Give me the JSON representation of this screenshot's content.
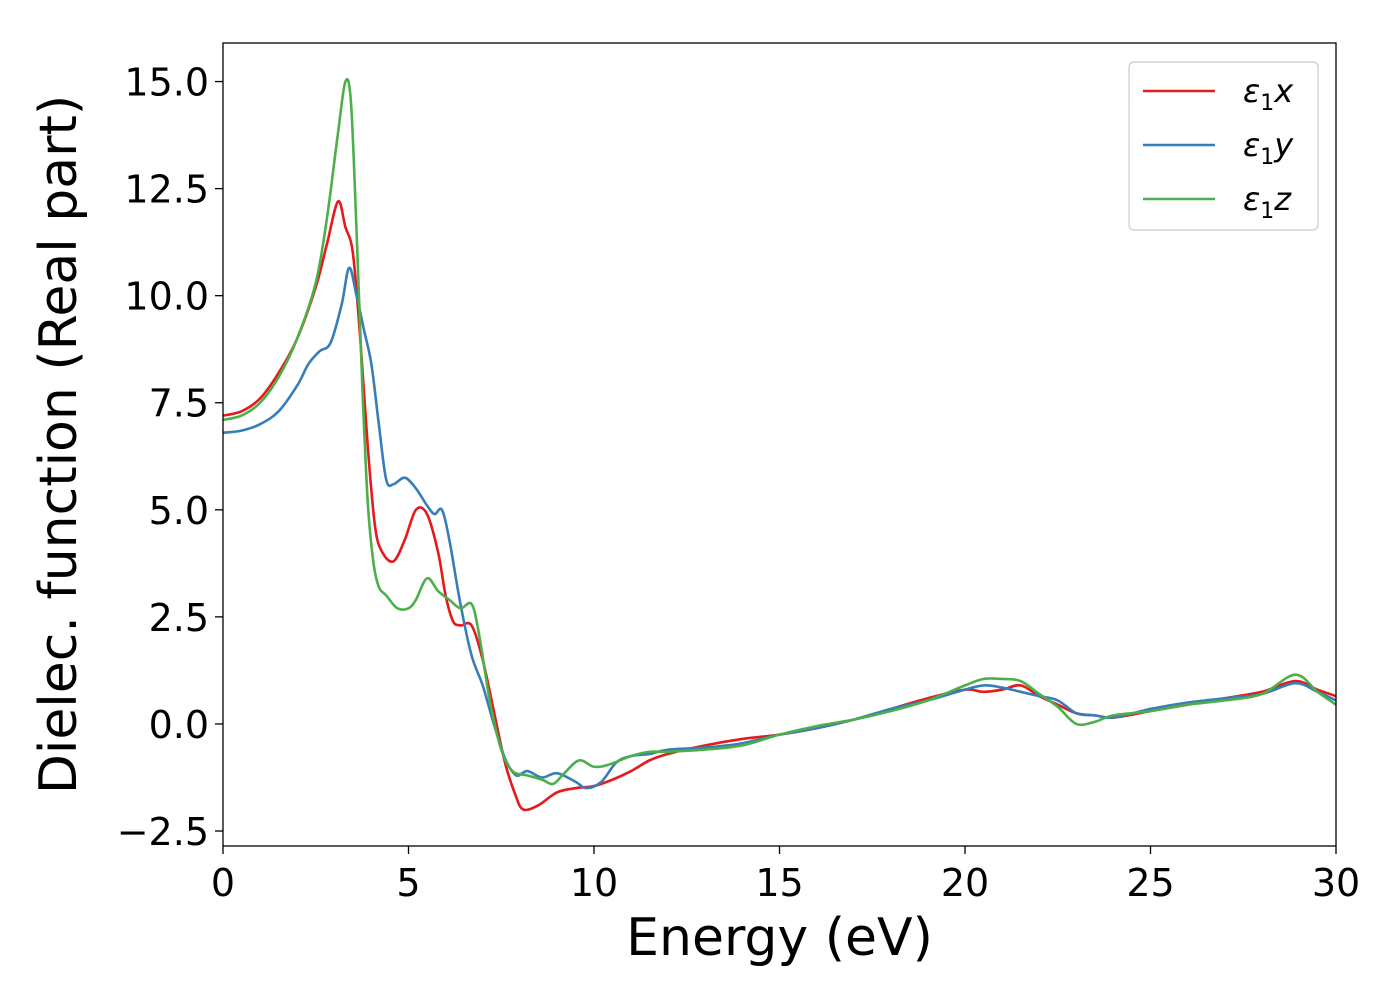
{
  "chart_data": {
    "type": "line",
    "xlabel": "Energy (eV)",
    "ylabel": "Dielec. function (Real part)",
    "xlim": [
      0,
      30
    ],
    "ylim": [
      -2.85,
      15.9
    ],
    "xticks": [
      0,
      5,
      10,
      15,
      20,
      25,
      30
    ],
    "yticks": [
      -2.5,
      0.0,
      2.5,
      5.0,
      7.5,
      10.0,
      12.5,
      15.0
    ],
    "xtick_labels": [
      "0",
      "5",
      "10",
      "15",
      "20",
      "25",
      "30"
    ],
    "ytick_labels": [
      "−2.5",
      "0.0",
      "2.5",
      "5.0",
      "7.5",
      "10.0",
      "12.5",
      "15.0"
    ],
    "grid": false,
    "legend_position": "top-right",
    "series": [
      {
        "name": "ε1x",
        "legend_base": "ε",
        "legend_sub": "1",
        "legend_var": "x",
        "color": "#e41a1c",
        "x": [
          0,
          0.5,
          1.0,
          1.5,
          2.0,
          2.5,
          2.8,
          3.1,
          3.3,
          3.5,
          3.7,
          3.9,
          4.1,
          4.3,
          4.6,
          4.9,
          5.2,
          5.5,
          5.8,
          6.0,
          6.2,
          6.4,
          6.7,
          7.0,
          7.3,
          7.6,
          7.9,
          8.1,
          8.5,
          9.0,
          9.5,
          10.0,
          10.5,
          11.0,
          11.5,
          12.0,
          13.0,
          14.0,
          15.0,
          16.0,
          17.0,
          18.0,
          19.0,
          20.0,
          20.5,
          21.0,
          21.5,
          22.0,
          22.5,
          23.0,
          23.5,
          24.0,
          25.0,
          26.0,
          27.0,
          28.0,
          28.9,
          29.5,
          30.0
        ],
        "y": [
          7.2,
          7.3,
          7.6,
          8.2,
          9.0,
          10.2,
          11.2,
          12.2,
          11.6,
          11.0,
          9.0,
          6.5,
          4.6,
          4.0,
          3.8,
          4.3,
          5.0,
          4.9,
          4.0,
          3.0,
          2.4,
          2.3,
          2.3,
          1.5,
          0.3,
          -0.9,
          -1.7,
          -2.0,
          -1.9,
          -1.6,
          -1.5,
          -1.45,
          -1.3,
          -1.1,
          -0.85,
          -0.7,
          -0.5,
          -0.35,
          -0.25,
          -0.1,
          0.1,
          0.35,
          0.6,
          0.8,
          0.75,
          0.8,
          0.9,
          0.65,
          0.45,
          0.25,
          0.2,
          0.15,
          0.3,
          0.45,
          0.6,
          0.75,
          1.0,
          0.8,
          0.65
        ]
      },
      {
        "name": "ε1y",
        "legend_base": "ε",
        "legend_sub": "1",
        "legend_var": "y",
        "color": "#377eb8",
        "x": [
          0,
          0.5,
          1.0,
          1.5,
          2.0,
          2.3,
          2.6,
          2.9,
          3.2,
          3.4,
          3.6,
          3.8,
          4.0,
          4.2,
          4.4,
          4.6,
          4.9,
          5.2,
          5.5,
          5.7,
          5.9,
          6.1,
          6.4,
          6.7,
          7.0,
          7.3,
          7.6,
          7.9,
          8.2,
          8.6,
          9.0,
          9.5,
          9.8,
          10.2,
          10.6,
          11.0,
          11.5,
          12.0,
          13.0,
          14.0,
          15.0,
          16.0,
          17.0,
          18.0,
          19.0,
          20.0,
          20.5,
          21.0,
          21.5,
          22.0,
          22.5,
          23.0,
          23.5,
          24.0,
          25.0,
          26.0,
          27.0,
          28.0,
          28.9,
          29.5,
          30.0
        ],
        "y": [
          6.8,
          6.85,
          7.0,
          7.3,
          7.9,
          8.4,
          8.7,
          8.9,
          9.8,
          10.65,
          10.0,
          9.2,
          8.4,
          7.0,
          5.7,
          5.6,
          5.75,
          5.5,
          5.1,
          4.9,
          5.0,
          4.3,
          2.8,
          1.6,
          0.9,
          0.0,
          -0.8,
          -1.2,
          -1.1,
          -1.25,
          -1.15,
          -1.35,
          -1.5,
          -1.35,
          -0.9,
          -0.75,
          -0.7,
          -0.6,
          -0.55,
          -0.45,
          -0.25,
          -0.1,
          0.1,
          0.35,
          0.55,
          0.8,
          0.9,
          0.85,
          0.75,
          0.65,
          0.55,
          0.25,
          0.2,
          0.15,
          0.35,
          0.5,
          0.6,
          0.7,
          0.95,
          0.75,
          0.55
        ]
      },
      {
        "name": "ε1z",
        "legend_base": "ε",
        "legend_sub": "1",
        "legend_var": "z",
        "color": "#4daf4a",
        "x": [
          0,
          0.5,
          1.0,
          1.5,
          2.0,
          2.5,
          2.8,
          3.1,
          3.3,
          3.45,
          3.6,
          3.75,
          3.9,
          4.05,
          4.2,
          4.4,
          4.7,
          5.0,
          5.2,
          5.5,
          5.8,
          6.1,
          6.4,
          6.7,
          6.9,
          7.2,
          7.5,
          7.8,
          8.2,
          8.6,
          8.9,
          9.2,
          9.6,
          10.0,
          10.4,
          11.0,
          11.5,
          12.0,
          13.0,
          14.0,
          15.0,
          16.0,
          17.0,
          18.0,
          19.0,
          20.0,
          20.5,
          21.0,
          21.5,
          22.0,
          22.5,
          23.0,
          23.5,
          24.0,
          25.0,
          26.0,
          27.0,
          28.0,
          28.9,
          29.5,
          30.0
        ],
        "y": [
          7.1,
          7.2,
          7.5,
          8.1,
          9.0,
          10.3,
          11.8,
          13.8,
          15.0,
          14.5,
          11.5,
          8.0,
          5.2,
          3.8,
          3.2,
          3.0,
          2.7,
          2.7,
          2.9,
          3.4,
          3.1,
          2.9,
          2.7,
          2.8,
          2.1,
          0.5,
          -0.6,
          -1.1,
          -1.2,
          -1.3,
          -1.4,
          -1.15,
          -0.85,
          -1.0,
          -0.95,
          -0.75,
          -0.65,
          -0.65,
          -0.6,
          -0.5,
          -0.25,
          -0.05,
          0.1,
          0.3,
          0.55,
          0.9,
          1.05,
          1.05,
          1.0,
          0.7,
          0.4,
          0.0,
          0.05,
          0.2,
          0.3,
          0.45,
          0.55,
          0.7,
          1.15,
          0.75,
          0.45
        ]
      }
    ]
  }
}
